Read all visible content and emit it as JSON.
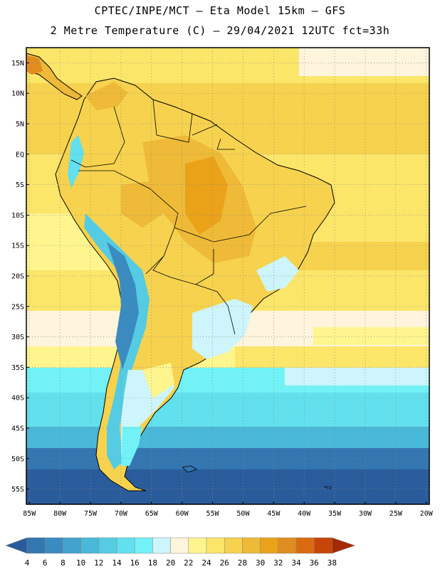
{
  "header": {
    "line1": "CPTEC/INPE/MCT –  Eta Model 15km – GFS",
    "line2": "2 Metre Temperature (C) – 29/04/2021 12UTC fct=33h"
  },
  "axes": {
    "lat_labels": [
      "15N",
      "10N",
      "5N",
      "EQ",
      "5S",
      "10S",
      "15S",
      "20S",
      "25S",
      "30S",
      "35S",
      "40S",
      "45S",
      "50S",
      "55S"
    ],
    "lat_values": [
      15,
      10,
      5,
      0,
      -5,
      -10,
      -15,
      -20,
      -25,
      -30,
      -35,
      -40,
      -45,
      -50,
      -55
    ],
    "lon_labels": [
      "85W",
      "80W",
      "75W",
      "70W",
      "65W",
      "60W",
      "55W",
      "50W",
      "45W",
      "40W",
      "35W",
      "30W",
      "25W",
      "20W"
    ],
    "lon_values": [
      -85,
      -80,
      -75,
      -70,
      -65,
      -60,
      -55,
      -50,
      -45,
      -40,
      -35,
      -30,
      -25,
      -20
    ],
    "lon_range": [
      -85.5,
      -19.5
    ],
    "lat_range": [
      -57.5,
      17.5
    ]
  },
  "colorbar": {
    "labels": [
      "4",
      "6",
      "8",
      "10",
      "12",
      "14",
      "16",
      "18",
      "20",
      "22",
      "24",
      "26",
      "28",
      "30",
      "32",
      "34",
      "36",
      "38"
    ],
    "colors": [
      "#2a5c9c",
      "#3376b0",
      "#3a8bc0",
      "#43a3cd",
      "#4ab8d8",
      "#55cce3",
      "#62e0ed",
      "#72f2f6",
      "#cdf5fb",
      "#fff4dc",
      "#fff58e",
      "#fbe66a",
      "#f6d24e",
      "#eeba37",
      "#eaa219",
      "#e18c1f",
      "#da6a10",
      "#c74509",
      "#a32a04"
    ]
  },
  "regions": [
    {
      "name": "band-north-atlantic",
      "color": "#f6d24e"
    },
    {
      "name": "band-subtropical",
      "color": "#fbe66a"
    },
    {
      "name": "band-26s-33s",
      "color": "#fff4dc"
    },
    {
      "name": "band-33s-37s",
      "color": "#72f2f6"
    },
    {
      "name": "band-37s-44s",
      "color": "#62e0ed"
    },
    {
      "name": "band-44s-47s",
      "color": "#4ab8d8"
    },
    {
      "name": "band-47s-51s",
      "color": "#3376b0"
    },
    {
      "name": "band-south",
      "color": "#2a5c9c"
    }
  ]
}
